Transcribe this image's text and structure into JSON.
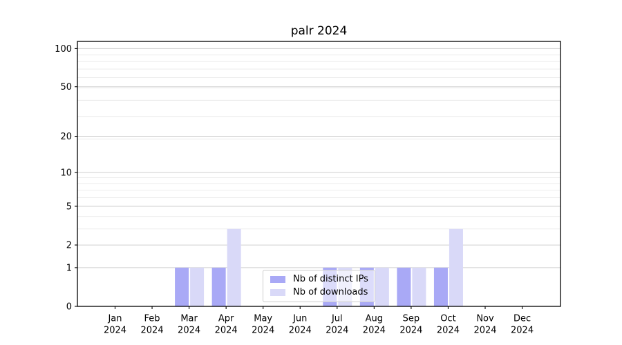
{
  "chart_data": {
    "type": "bar",
    "title": "palr 2024",
    "categories": [
      "Jan",
      "Feb",
      "Mar",
      "Apr",
      "May",
      "Jun",
      "Jul",
      "Aug",
      "Sep",
      "Oct",
      "Nov",
      "Dec"
    ],
    "x_tick_year": "2024",
    "series": [
      {
        "name": "Nb of distinct IPs",
        "color": "#a9a9f6",
        "values": [
          0,
          0,
          1,
          1,
          0,
          0,
          1,
          1,
          1,
          1,
          0,
          0
        ]
      },
      {
        "name": "Nb of downloads",
        "color": "#d9d9f8",
        "values": [
          0,
          0,
          1,
          3,
          0,
          0,
          1,
          1,
          1,
          3,
          0,
          0
        ]
      }
    ],
    "y_scale": "log1p",
    "ylim": [
      0,
      112
    ],
    "y_major_ticks": [
      0,
      1,
      2,
      5,
      10,
      20,
      50,
      100
    ],
    "y_minor_ticks": [
      3,
      4,
      6,
      7,
      8,
      9,
      19,
      29,
      39,
      49,
      59,
      69,
      79,
      89
    ],
    "grid": "horizontal",
    "legend_position": "lower center"
  },
  "colors": {
    "grid_major": "#cfcfcf",
    "grid_minor": "#eaeaea",
    "axis": "#000000",
    "legend_border": "#cccccc",
    "background": "#ffffff"
  }
}
